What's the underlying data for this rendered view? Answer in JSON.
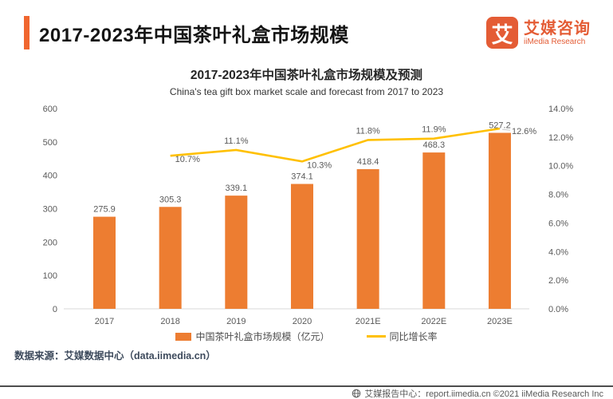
{
  "header": {
    "title": "2017-2023年中国茶叶礼盒市场规模",
    "logo": {
      "mark": "艾",
      "name_zh": "艾媒咨询",
      "name_en": "iiMedia Research"
    }
  },
  "chart": {
    "title_zh": "2017-2023年中国茶叶礼盒市场规模及预测",
    "title_en": "China's tea gift box market scale and forecast from 2017 to 2023"
  },
  "chart_data": {
    "type": "bar",
    "categories": [
      "2017",
      "2018",
      "2019",
      "2020",
      "2021E",
      "2022E",
      "2023E"
    ],
    "series": [
      {
        "name": "中国茶叶礼盒市场规模（亿元）",
        "type": "bar",
        "axis": "left",
        "color": "#ED7D31",
        "values": [
          275.9,
          305.3,
          339.1,
          374.1,
          418.4,
          468.3,
          527.2
        ]
      },
      {
        "name": "同比增长率",
        "type": "line",
        "axis": "right",
        "color": "#FFC000",
        "values": [
          null,
          10.7,
          11.1,
          10.3,
          11.8,
          11.9,
          12.6
        ],
        "label_pos": [
          "below",
          "above",
          "below",
          "above",
          "above",
          "right"
        ]
      }
    ],
    "left_axis": {
      "min": 0,
      "max": 600,
      "step": 100,
      "ticks": [
        "0",
        "100",
        "200",
        "300",
        "400",
        "500",
        "600"
      ]
    },
    "right_axis": {
      "min": 0,
      "max": 14,
      "step": 2,
      "ticks": [
        "0.0%",
        "2.0%",
        "4.0%",
        "6.0%",
        "8.0%",
        "10.0%",
        "12.0%",
        "14.0%"
      ]
    },
    "grid": "off",
    "legend_position": "bottom",
    "title": "2017-2023年中国茶叶礼盒市场规模及预测",
    "subtitle": "China's tea gift box market scale and forecast from 2017 to 2023"
  },
  "legend": {
    "bar_label": "中国茶叶礼盒市场规模（亿元）",
    "line_label": "同比增长率"
  },
  "source_text": "数据来源：艾媒数据中心（data.iimedia.cn）",
  "footer_text": "艾媒报告中心：report.iimedia.cn ©2021 iiMedia Research Inc",
  "colors": {
    "bar": "#ED7D31",
    "line": "#FFC000",
    "accent": "#F0662F",
    "brand": "#E45C35",
    "label_text": "#595959"
  }
}
